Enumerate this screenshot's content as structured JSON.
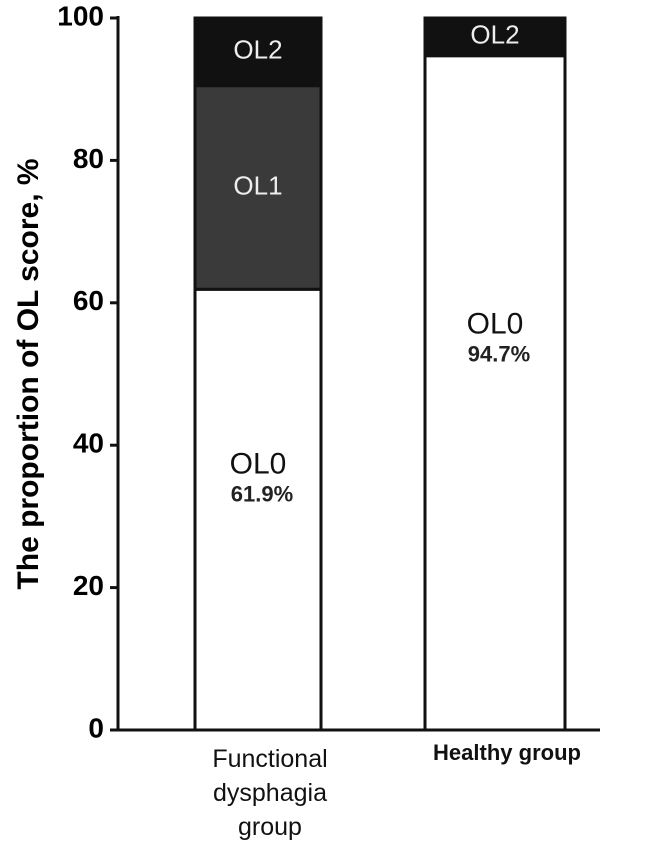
{
  "chart_data": {
    "type": "stacked_bar",
    "ylabel": "The proportion of OL score, %",
    "categories": [
      "Functional dysphagia group",
      "Healthy group"
    ],
    "series": [
      {
        "name": "OL0",
        "color": "#ffffff",
        "values": [
          61.9,
          94.7
        ],
        "value_labels": [
          "61.9%",
          "94.7%"
        ]
      },
      {
        "name": "OL1",
        "color": "#3a3a3a",
        "values": [
          28.6,
          0
        ]
      },
      {
        "name": "OL2",
        "color": "#111111",
        "values": [
          9.5,
          5.3
        ]
      }
    ],
    "ylim": [
      0,
      100
    ],
    "yticks": [
      0,
      20,
      40,
      60,
      80,
      100
    ]
  }
}
